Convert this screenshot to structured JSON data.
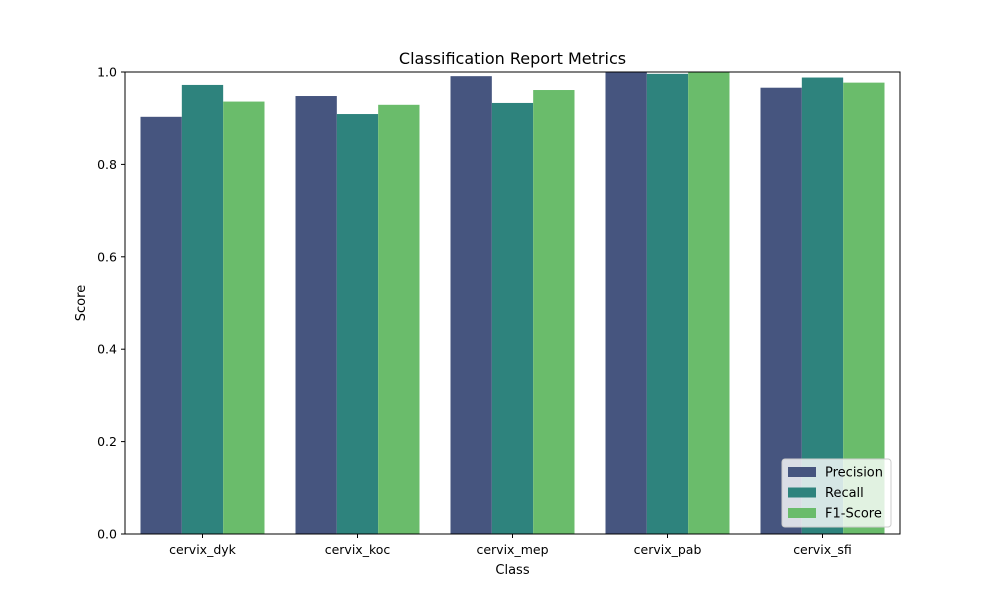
{
  "chart_data": {
    "type": "bar",
    "title": "Classification Report Metrics",
    "xlabel": "Class",
    "ylabel": "Score",
    "categories": [
      "cervix_dyk",
      "cervix_koc",
      "cervix_mep",
      "cervix_pab",
      "cervix_sfi"
    ],
    "series": [
      {
        "name": "Precision",
        "color": "#46557f",
        "values": [
          0.903,
          0.948,
          0.991,
          1.0,
          0.966
        ]
      },
      {
        "name": "Recall",
        "color": "#2e837d",
        "values": [
          0.972,
          0.909,
          0.933,
          0.996,
          0.988
        ]
      },
      {
        "name": "F1-Score",
        "color": "#6abc6b",
        "values": [
          0.936,
          0.929,
          0.961,
          1.0,
          0.977
        ]
      }
    ],
    "ylim": [
      0,
      1.0
    ],
    "yticks": [
      0.0,
      0.2,
      0.4,
      0.6,
      0.8,
      1.0
    ],
    "ytick_labels": [
      "0.0",
      "0.2",
      "0.4",
      "0.6",
      "0.8",
      "1.0"
    ],
    "grid": false,
    "legend_position": "lower-right"
  }
}
